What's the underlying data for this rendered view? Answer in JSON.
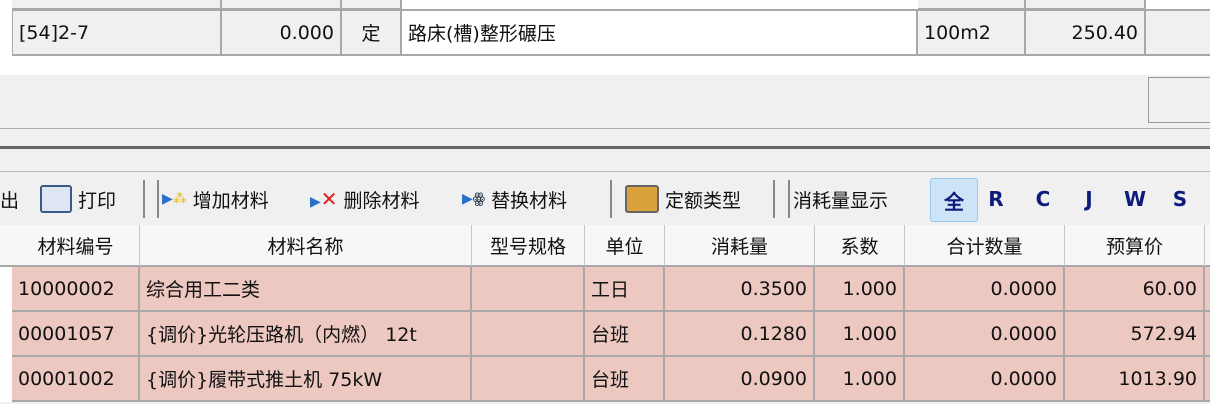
{
  "top_table": {
    "row": {
      "code": "[54]2-7",
      "qty": "0.000",
      "type": "定",
      "name": "路床(槽)整形碾压",
      "unit": "100m2",
      "price": "250.40"
    }
  },
  "toolbar": {
    "export": "出",
    "print": "打印",
    "add": "增加材料",
    "delete": "删除材料",
    "replace": "替换材料",
    "quota_type": "定额类型",
    "display_label": "消耗量显示",
    "filters": [
      "全",
      "R",
      "C",
      "J",
      "W",
      "S"
    ],
    "active_filter": "全"
  },
  "materials": {
    "headers": [
      "材料编号",
      "材料名称",
      "型号规格",
      "单位",
      "消耗量",
      "系数",
      "合计数量",
      "预算价"
    ],
    "rows": [
      {
        "code": "10000002",
        "name": "综合用工二类",
        "spec": "",
        "unit": "工日",
        "consumption": "0.3500",
        "coef": "1.000",
        "total": "0.0000",
        "price": "60.00"
      },
      {
        "code": "00001057",
        "name": "{调价}光轮压路机（内燃） 12t",
        "spec": "",
        "unit": "台班",
        "consumption": "0.1280",
        "coef": "1.000",
        "total": "0.0000",
        "price": "572.94"
      },
      {
        "code": "00001002",
        "name": "{调价}履带式推土机 75kW",
        "spec": "",
        "unit": "台班",
        "consumption": "0.0900",
        "coef": "1.000",
        "total": "0.0000",
        "price": "1013.90"
      }
    ],
    "row_color": "#ecc8c1"
  }
}
